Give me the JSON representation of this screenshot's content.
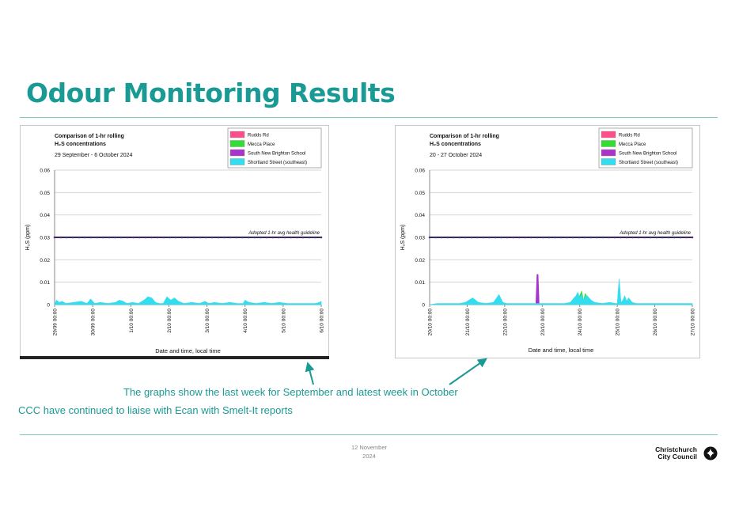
{
  "page": {
    "title": "Odour Monitoring Results",
    "caption_1": "The graphs show the last week for September and latest week in October",
    "caption_2": "CCC have continued to liaise with Ecan with Smelt-It reports",
    "date_line1": "12 November",
    "date_line2": "2024",
    "logo_line1": "Christchurch",
    "logo_line2": "City Council",
    "colors": {
      "accent": "#1a9a94",
      "rule": "#7fc7c2"
    }
  },
  "chart_data": [
    {
      "type": "area",
      "title_line1": "Comparison of 1-hr rolling",
      "title_line2": "H₂S concentrations",
      "subtitle": "29 September - 6 October 2024",
      "ylabel": "H₂S (ppm)",
      "xlabel": "Date and time, local time",
      "ylim": [
        0,
        0.06
      ],
      "yticks": [
        "0.06",
        "0.05",
        "0.04",
        "0.03",
        "0.02",
        "0.01",
        "0"
      ],
      "xticks": [
        "29/09 00:00",
        "30/09 00:00",
        "1/10 00:00",
        "2/10 00:00",
        "3/10 00:00",
        "4/10 00:00",
        "5/10 00:00",
        "6/10 00:00"
      ],
      "x_range": [
        0,
        7
      ],
      "guideline": {
        "value": 0.03,
        "label": "Adopted 1-hr avg health guideline"
      },
      "grid": true,
      "legend_position": "top-right",
      "series": [
        {
          "name": "Rudds Rd",
          "color": "#ff4d8c",
          "x": [],
          "y": []
        },
        {
          "name": "Mecca Place",
          "color": "#33dd33",
          "x": [],
          "y": []
        },
        {
          "name": "South New Brighton School",
          "color": "#aa33cc",
          "x": [],
          "y": []
        },
        {
          "name": "Shortland Street (southeast)",
          "color": "#33ddf0",
          "x": [
            0,
            0.05,
            0.12,
            0.2,
            0.3,
            0.5,
            0.7,
            0.85,
            0.95,
            1.05,
            1.2,
            1.4,
            1.6,
            1.7,
            1.8,
            1.9,
            2.05,
            2.2,
            2.35,
            2.45,
            2.55,
            2.65,
            2.75,
            2.85,
            2.95,
            3.05,
            3.15,
            3.25,
            3.4,
            3.6,
            3.8,
            3.95,
            4.05,
            4.2,
            4.4,
            4.6,
            4.8,
            4.95,
            5.0,
            5.1,
            5.3,
            5.5,
            5.7,
            5.9,
            6.1,
            6.3,
            6.5,
            6.7,
            6.85,
            6.95,
            7.0
          ],
          "y": [
            0,
            0.002,
            0.001,
            0.0015,
            0.0005,
            0.001,
            0.0015,
            0.0005,
            0.0025,
            0.0005,
            0.001,
            0.0005,
            0.001,
            0.002,
            0.0015,
            0.0005,
            0.001,
            0.0005,
            0.002,
            0.0035,
            0.003,
            0.001,
            0.0005,
            0.0005,
            0.0035,
            0.002,
            0.003,
            0.0015,
            0.0005,
            0.001,
            0.0005,
            0.0015,
            0.0005,
            0.001,
            0.0005,
            0.001,
            0.0005,
            0.0005,
            0.002,
            0.001,
            0.0005,
            0.001,
            0.0005,
            0.001,
            0.0005,
            0.0005,
            0.0005,
            0.0005,
            0.0005,
            0.001,
            0.0015
          ]
        }
      ]
    },
    {
      "type": "area",
      "title_line1": "Comparison of 1-hr rolling",
      "title_line2": "H₂S concentrations",
      "subtitle": "20 - 27 October 2024",
      "ylabel": "H₂S (ppm)",
      "xlabel": "Date and time, local time",
      "ylim": [
        0,
        0.06
      ],
      "yticks": [
        "0.06",
        "0.05",
        "0.04",
        "0.03",
        "0.02",
        "0.01",
        "0"
      ],
      "xticks": [
        "20/10 00:00",
        "21/10 00:00",
        "22/10 00:00",
        "23/10 00:00",
        "24/10 00:00",
        "25/10 00:00",
        "26/10 00:00",
        "27/10 00:00"
      ],
      "x_range": [
        0,
        7
      ],
      "guideline": {
        "value": 0.03,
        "label": "Adopted 1-hr avg health guideline"
      },
      "grid": true,
      "legend_position": "top-right",
      "series": [
        {
          "name": "Rudds Rd",
          "color": "#ff4d8c",
          "x": [],
          "y": []
        },
        {
          "name": "Mecca Place",
          "color": "#33dd33",
          "x": [
            3.9,
            4.0,
            4.05,
            4.1,
            4.15,
            4.2,
            4.25
          ],
          "y": [
            0,
            0.004,
            0.006,
            0.002,
            0.005,
            0.003,
            0
          ]
        },
        {
          "name": "South New Brighton School",
          "color": "#aa33cc",
          "x": [
            2.83,
            2.86,
            2.89,
            2.92
          ],
          "y": [
            0,
            0.0135,
            0.0135,
            0
          ]
        },
        {
          "name": "Shortland Street (southeast)",
          "color": "#33ddf0",
          "x": [
            0,
            0.2,
            0.4,
            0.6,
            0.8,
            0.95,
            1.05,
            1.15,
            1.3,
            1.5,
            1.7,
            1.85,
            1.95,
            2.05,
            2.2,
            2.4,
            2.6,
            2.8,
            3.0,
            3.2,
            3.4,
            3.6,
            3.75,
            3.8,
            3.85,
            3.9,
            3.95,
            4.0,
            4.05,
            4.1,
            4.15,
            4.2,
            4.3,
            4.4,
            4.6,
            4.8,
            4.95,
            5.0,
            5.05,
            5.1,
            5.15,
            5.2,
            5.25,
            5.3,
            5.4,
            5.5,
            5.7,
            5.9,
            6.1,
            6.3,
            6.5,
            6.7,
            6.9,
            7.0
          ],
          "y": [
            0,
            0.0005,
            0.0005,
            0.0005,
            0.0005,
            0.001,
            0.002,
            0.003,
            0.001,
            0.0005,
            0.001,
            0.0045,
            0.001,
            0.0005,
            0.0005,
            0.0005,
            0.0005,
            0.0005,
            0.0005,
            0.0005,
            0.0005,
            0.0005,
            0.001,
            0.002,
            0.003,
            0.004,
            0.0055,
            0.003,
            0.0045,
            0.002,
            0.0035,
            0.004,
            0.002,
            0.001,
            0.0005,
            0.001,
            0.0005,
            0.0005,
            0.0115,
            0.001,
            0.002,
            0.004,
            0.0015,
            0.003,
            0.001,
            0.0005,
            0.0005,
            0.0005,
            0.0005,
            0.0005,
            0.0005,
            0.0005,
            0.0005,
            0.0005
          ]
        }
      ]
    }
  ]
}
